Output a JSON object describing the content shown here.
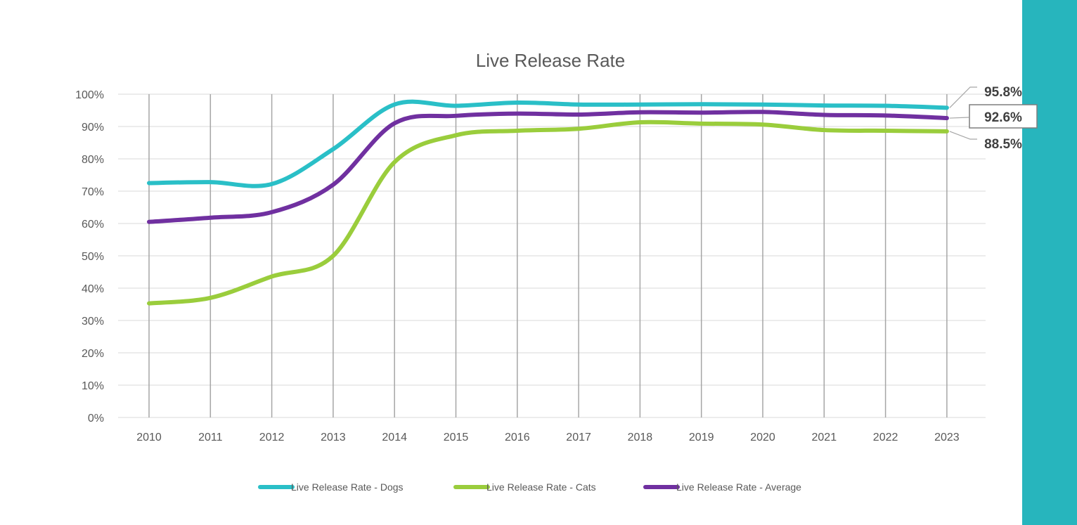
{
  "chart_data": {
    "type": "line",
    "title": "Live Release Rate",
    "xlabel": "",
    "ylabel": "",
    "categories": [
      "2010",
      "2011",
      "2012",
      "2013",
      "2014",
      "2015",
      "2016",
      "2017",
      "2018",
      "2019",
      "2020",
      "2021",
      "2022",
      "2023"
    ],
    "ylim": [
      0,
      100
    ],
    "yticks": [
      "0%",
      "10%",
      "20%",
      "30%",
      "40%",
      "50%",
      "60%",
      "70%",
      "80%",
      "90%",
      "100%"
    ],
    "grid": "horizontal and vertical",
    "legend_position": "bottom",
    "series": [
      {
        "name": "Live Release Rate - Dogs",
        "color": "#2ABFC7",
        "values": [
          72.5,
          72.8,
          72.2,
          83.0,
          96.8,
          96.4,
          97.4,
          96.8,
          96.8,
          96.9,
          96.8,
          96.5,
          96.4,
          95.8
        ],
        "end_label": "95.8%"
      },
      {
        "name": "Live Release Rate - Cats",
        "color": "#9ACD3C",
        "values": [
          35.3,
          37.0,
          43.6,
          50.0,
          79.0,
          87.3,
          88.7,
          89.3,
          91.3,
          90.9,
          90.6,
          88.9,
          88.7,
          88.5
        ],
        "end_label": "88.5%"
      },
      {
        "name": "Live Release Rate - Average",
        "color": "#7030A0",
        "values": [
          60.5,
          61.8,
          63.5,
          72.0,
          91.0,
          93.3,
          94.0,
          93.7,
          94.4,
          94.3,
          94.5,
          93.6,
          93.4,
          92.6
        ],
        "end_label": "92.6%"
      }
    ]
  }
}
